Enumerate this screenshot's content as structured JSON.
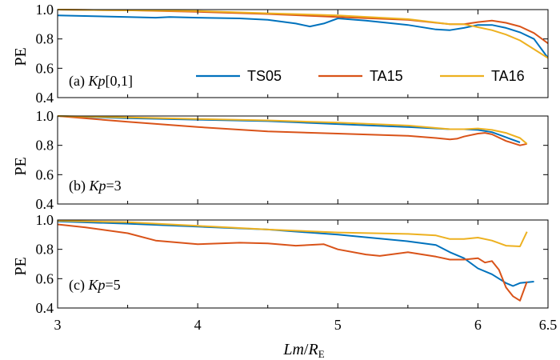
{
  "chart_data": [
    {
      "type": "line",
      "panel_label_prefix": "(a) ",
      "panel_label_italic": "Kp",
      "panel_label_suffix": "[0,1]",
      "ylabel": "PE",
      "xlim": [
        3,
        6.5
      ],
      "ylim": [
        0.4,
        1.0
      ],
      "yticks": [
        "0.4",
        "0.6",
        "0.8",
        "1.0"
      ],
      "legend": [
        "TS05",
        "TA15",
        "TA16"
      ],
      "series": [
        {
          "name": "TS05",
          "color": "#0072BD",
          "x": [
            3.0,
            3.5,
            3.7,
            3.8,
            4.0,
            4.3,
            4.5,
            4.7,
            4.8,
            4.9,
            5.0,
            5.2,
            5.5,
            5.7,
            5.8,
            5.9,
            6.0,
            6.1,
            6.2,
            6.3,
            6.4,
            6.5
          ],
          "y": [
            0.96,
            0.95,
            0.945,
            0.95,
            0.945,
            0.94,
            0.93,
            0.905,
            0.885,
            0.905,
            0.94,
            0.925,
            0.895,
            0.865,
            0.86,
            0.875,
            0.895,
            0.895,
            0.875,
            0.845,
            0.8,
            0.67
          ]
        },
        {
          "name": "TA15",
          "color": "#D95319",
          "x": [
            3.0,
            3.5,
            4.0,
            4.5,
            5.0,
            5.5,
            5.8,
            5.9,
            6.0,
            6.1,
            6.2,
            6.3,
            6.4,
            6.5
          ],
          "y": [
            1.0,
            0.995,
            0.985,
            0.97,
            0.95,
            0.93,
            0.9,
            0.9,
            0.915,
            0.925,
            0.91,
            0.885,
            0.84,
            0.77
          ]
        },
        {
          "name": "TA16",
          "color": "#EDB120",
          "x": [
            3.0,
            3.5,
            4.0,
            4.5,
            5.0,
            5.5,
            5.8,
            5.9,
            6.0,
            6.1,
            6.2,
            6.3,
            6.4,
            6.5
          ],
          "y": [
            1.0,
            0.995,
            0.99,
            0.975,
            0.96,
            0.935,
            0.9,
            0.9,
            0.88,
            0.86,
            0.83,
            0.79,
            0.73,
            0.67
          ]
        }
      ]
    },
    {
      "type": "line",
      "panel_label_prefix": "(b) ",
      "panel_label_italic": "Kp",
      "panel_label_suffix": "=3",
      "ylabel": "PE",
      "xlim": [
        3,
        6.5
      ],
      "ylim": [
        0.4,
        1.0
      ],
      "yticks": [
        "0.4",
        "0.6",
        "0.8",
        "1.0"
      ],
      "series": [
        {
          "name": "TS05",
          "color": "#0072BD",
          "x": [
            3.0,
            3.5,
            4.0,
            4.5,
            5.0,
            5.5,
            5.8,
            5.9,
            6.0,
            6.1,
            6.2,
            6.3
          ],
          "y": [
            1.0,
            0.985,
            0.975,
            0.965,
            0.945,
            0.925,
            0.91,
            0.91,
            0.905,
            0.89,
            0.855,
            0.82
          ]
        },
        {
          "name": "TA15",
          "color": "#D95319",
          "x": [
            3.0,
            3.5,
            4.0,
            4.5,
            5.0,
            5.5,
            5.7,
            5.8,
            5.85,
            5.9,
            6.0,
            6.05,
            6.1,
            6.2,
            6.3,
            6.35
          ],
          "y": [
            1.0,
            0.96,
            0.925,
            0.895,
            0.88,
            0.865,
            0.85,
            0.84,
            0.845,
            0.86,
            0.88,
            0.885,
            0.875,
            0.83,
            0.8,
            0.81
          ]
        },
        {
          "name": "TA16",
          "color": "#EDB120",
          "x": [
            3.0,
            3.5,
            4.0,
            4.5,
            5.0,
            5.5,
            5.8,
            5.9,
            6.0,
            6.1,
            6.2,
            6.3,
            6.35
          ],
          "y": [
            1.0,
            0.99,
            0.98,
            0.97,
            0.955,
            0.935,
            0.91,
            0.91,
            0.915,
            0.905,
            0.885,
            0.85,
            0.81
          ]
        }
      ]
    },
    {
      "type": "line",
      "panel_label_prefix": "(c) ",
      "panel_label_italic": "Kp",
      "panel_label_suffix": "=5",
      "ylabel": "PE",
      "xlabel_italic": "Lm",
      "xlabel_mid": "/",
      "xlabel_italic2": "R",
      "xlabel_sub": "E",
      "xlim": [
        3,
        6.5
      ],
      "ylim": [
        0.4,
        1.0
      ],
      "yticks": [
        "0.4",
        "0.6",
        "0.8",
        "1.0"
      ],
      "xticks": [
        "3",
        "4",
        "5",
        "6",
        "6.5"
      ],
      "series": [
        {
          "name": "TS05",
          "color": "#0072BD",
          "x": [
            3.0,
            3.5,
            4.0,
            4.5,
            5.0,
            5.5,
            5.7,
            5.8,
            5.9,
            6.0,
            6.1,
            6.2,
            6.25,
            6.3,
            6.4
          ],
          "y": [
            0.99,
            0.975,
            0.955,
            0.935,
            0.9,
            0.855,
            0.83,
            0.78,
            0.74,
            0.67,
            0.63,
            0.57,
            0.55,
            0.57,
            0.58
          ]
        },
        {
          "name": "TA15",
          "color": "#D95319",
          "x": [
            3.0,
            3.2,
            3.5,
            3.7,
            4.0,
            4.3,
            4.5,
            4.7,
            4.9,
            5.0,
            5.2,
            5.3,
            5.5,
            5.7,
            5.8,
            5.9,
            6.0,
            6.05,
            6.1,
            6.15,
            6.2,
            6.25,
            6.3,
            6.35
          ],
          "y": [
            0.97,
            0.95,
            0.91,
            0.86,
            0.835,
            0.845,
            0.84,
            0.825,
            0.835,
            0.8,
            0.765,
            0.755,
            0.78,
            0.75,
            0.73,
            0.73,
            0.74,
            0.71,
            0.72,
            0.66,
            0.54,
            0.48,
            0.45,
            0.58
          ]
        },
        {
          "name": "TA16",
          "color": "#EDB120",
          "x": [
            3.0,
            3.5,
            4.0,
            4.5,
            5.0,
            5.5,
            5.7,
            5.8,
            5.9,
            6.0,
            6.1,
            6.2,
            6.3,
            6.35
          ],
          "y": [
            0.995,
            0.985,
            0.96,
            0.935,
            0.915,
            0.905,
            0.895,
            0.87,
            0.87,
            0.88,
            0.86,
            0.825,
            0.82,
            0.92
          ]
        }
      ]
    }
  ]
}
